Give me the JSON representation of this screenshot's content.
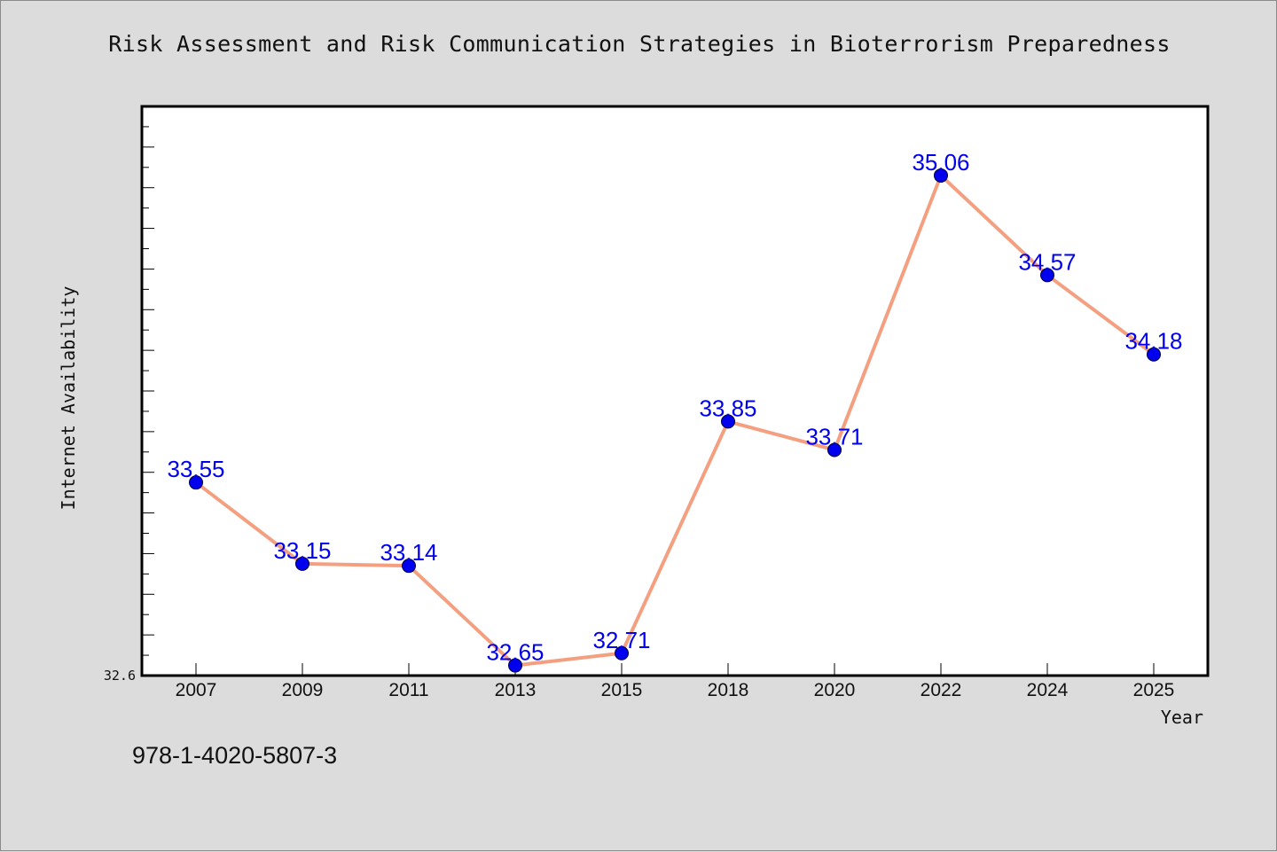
{
  "chart_data": {
    "type": "line",
    "title": "Risk Assessment and Risk Communication Strategies in Bioterrorism Preparedness",
    "xlabel": "Year",
    "ylabel": "Internet Availability",
    "categories": [
      "2007",
      "2009",
      "2011",
      "2013",
      "2015",
      "2018",
      "2020",
      "2022",
      "2024",
      "2025"
    ],
    "series": [
      {
        "values": [
          33.55,
          33.15,
          33.14,
          32.65,
          32.71,
          33.85,
          33.71,
          35.06,
          34.57,
          34.18
        ]
      }
    ],
    "data_labels": [
      "33.55",
      "33.15",
      "33.14",
      "32.65",
      "32.71",
      "33.85",
      "33.71",
      "35.06",
      "34.57",
      "34.18"
    ],
    "ylim": [
      32.6,
      35.4
    ],
    "ytick_labels": [
      "32.6"
    ],
    "y_minor_tick_step": 0.1,
    "y_major_tick_step": 0.2,
    "grid": false,
    "line_color": "#f4a080",
    "marker_color": "#0000ee",
    "label_color": "#0000ee"
  },
  "footer": {
    "id_text": "978-1-4020-5807-3"
  }
}
